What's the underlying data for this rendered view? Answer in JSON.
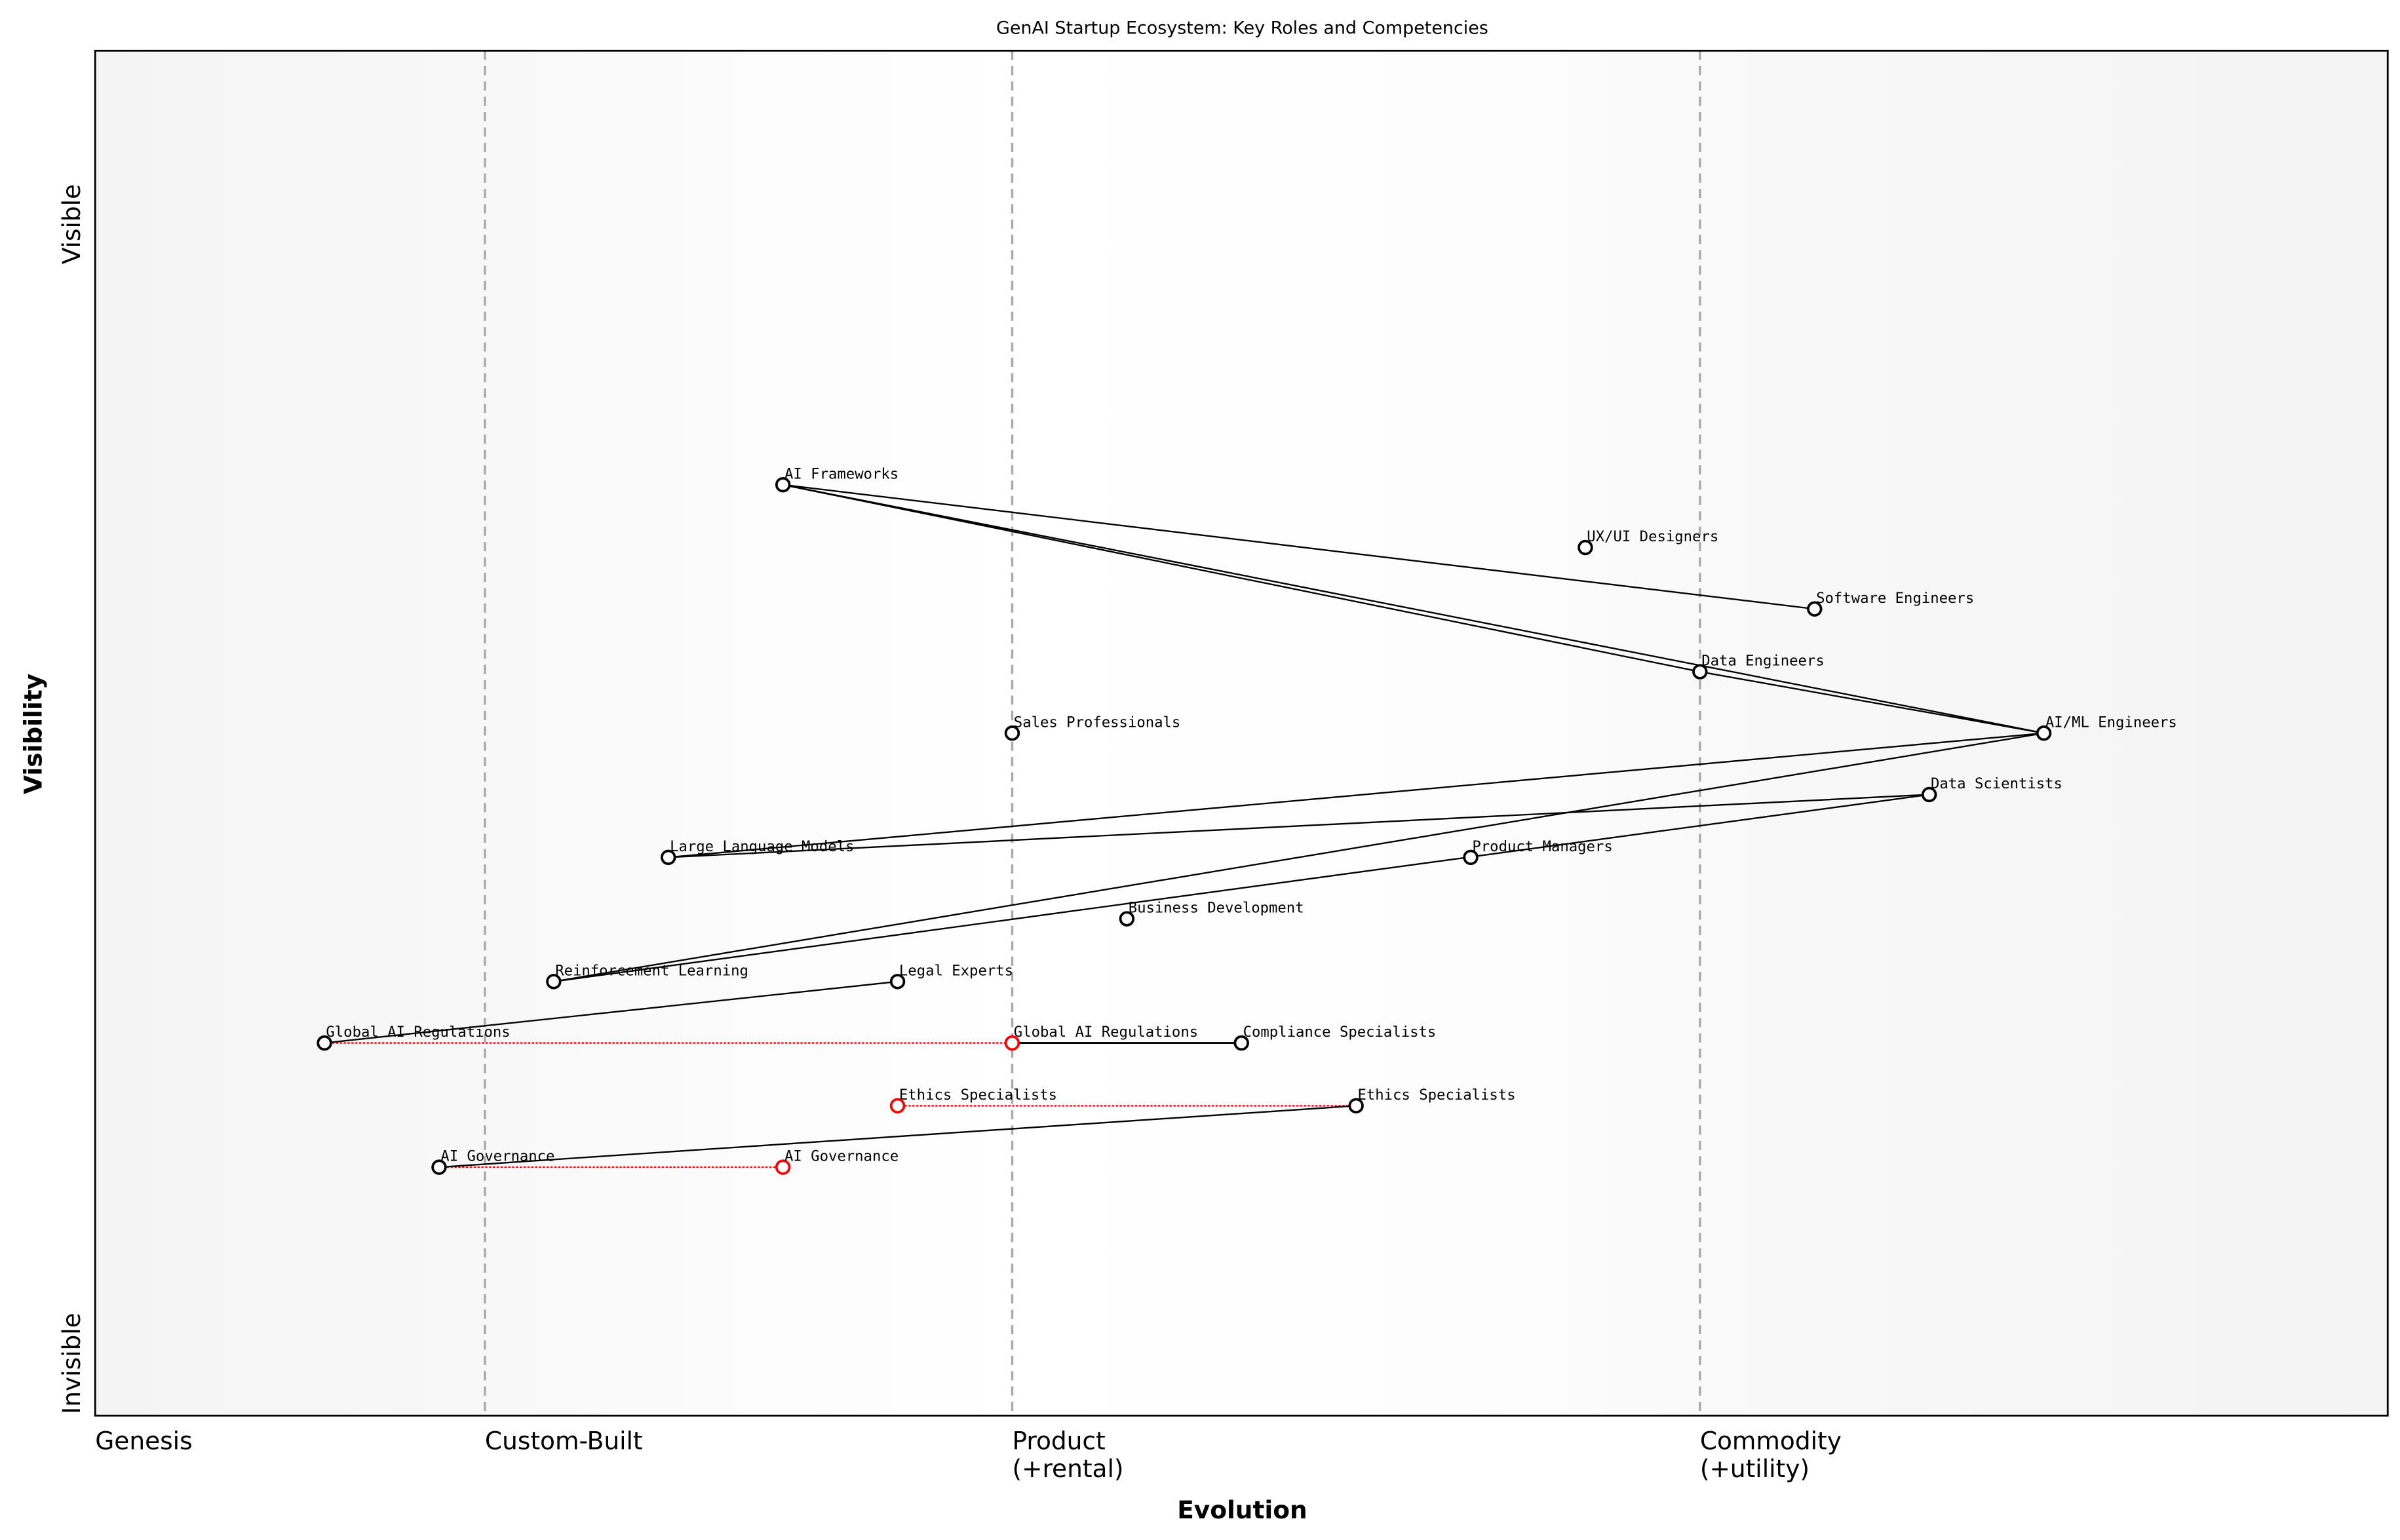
{
  "chart_data": {
    "type": "wardley-map",
    "title": "GenAI Startup Ecosystem: Key Roles and Competencies",
    "xlabel": "Evolution",
    "ylabel": "Visibility",
    "xlim": [
      0,
      1
    ],
    "ylim": [
      0,
      1
    ],
    "x_stages": [
      {
        "label": "Genesis",
        "x": 0.0
      },
      {
        "label": "Custom-Built",
        "x": 0.17
      },
      {
        "label": "Product\n(+rental)",
        "x": 0.4
      },
      {
        "label": "Commodity\n(+utility)",
        "x": 0.7
      }
    ],
    "y_labels": {
      "top": "Visible",
      "bottom": "Invisible"
    },
    "colors": {
      "node": "#000000",
      "evolved": "#ff0000",
      "stage_line": "#aaaaaa",
      "band_edge": "#f4f4f4",
      "band_center": "#ffffff"
    },
    "components": [
      {
        "id": "aif",
        "name": "AI Frameworks",
        "x": 0.3,
        "y": 0.682
      },
      {
        "id": "ux",
        "name": "UX/UI Designers",
        "x": 0.65,
        "y": 0.636
      },
      {
        "id": "swe",
        "name": "Software Engineers",
        "x": 0.75,
        "y": 0.591
      },
      {
        "id": "de",
        "name": "Data Engineers",
        "x": 0.7,
        "y": 0.545
      },
      {
        "id": "sales",
        "name": "Sales Professionals",
        "x": 0.4,
        "y": 0.5
      },
      {
        "id": "aiml",
        "name": "AI/ML Engineers",
        "x": 0.85,
        "y": 0.5
      },
      {
        "id": "ds",
        "name": "Data Scientists",
        "x": 0.8,
        "y": 0.455
      },
      {
        "id": "llm",
        "name": "Large Language Models",
        "x": 0.25,
        "y": 0.409
      },
      {
        "id": "pm",
        "name": "Product Managers",
        "x": 0.6,
        "y": 0.409
      },
      {
        "id": "bd",
        "name": "Business Development",
        "x": 0.45,
        "y": 0.364
      },
      {
        "id": "rl",
        "name": "Reinforcement Learning",
        "x": 0.2,
        "y": 0.318
      },
      {
        "id": "legal",
        "name": "Legal Experts",
        "x": 0.35,
        "y": 0.318
      },
      {
        "id": "gar",
        "name": "Global AI Regulations",
        "x": 0.1,
        "y": 0.273
      },
      {
        "id": "comp",
        "name": "Compliance Specialists",
        "x": 0.5,
        "y": 0.273
      },
      {
        "id": "eth",
        "name": "Ethics Specialists",
        "x": 0.55,
        "y": 0.227
      },
      {
        "id": "gov",
        "name": "AI Governance",
        "x": 0.15,
        "y": 0.182
      }
    ],
    "evolved": [
      {
        "name": "Global AI Regulations",
        "from": "gar",
        "x": 0.4,
        "y": 0.273
      },
      {
        "name": "Ethics Specialists",
        "from": "eth",
        "x": 0.35,
        "y": 0.227
      },
      {
        "name": "AI Governance",
        "from": "gov",
        "x": 0.3,
        "y": 0.182
      }
    ],
    "links": [
      [
        "aif",
        "swe"
      ],
      [
        "aif",
        "de"
      ],
      [
        "aif",
        "aiml"
      ],
      [
        "de",
        "aiml"
      ],
      [
        "aiml",
        "llm"
      ],
      [
        "aiml",
        "rl"
      ],
      [
        "ds",
        "llm"
      ],
      [
        "ds",
        "rl"
      ],
      [
        "gar",
        "legal"
      ],
      [
        "gov",
        "eth"
      ]
    ],
    "evolved_links": [
      {
        "from_x": 0.4,
        "to": "comp",
        "y": 0.273
      }
    ]
  }
}
